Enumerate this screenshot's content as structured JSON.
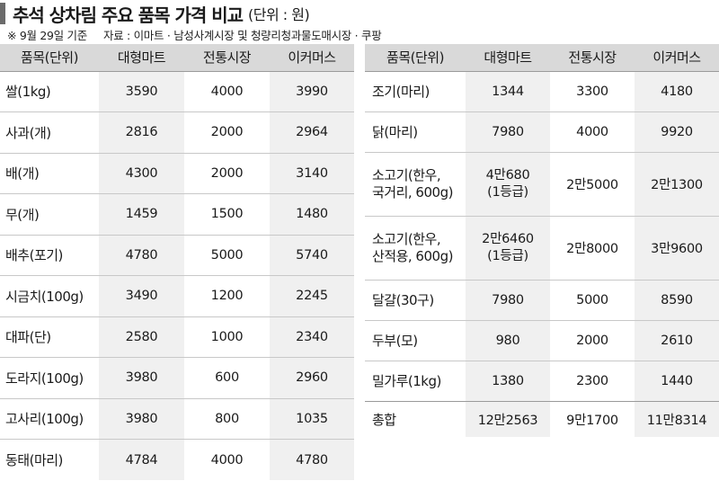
{
  "header": {
    "title": "추석 상차림 주요 품목 가격 비교",
    "unit": "(단위 : 원)",
    "date_note": "※ 9월 29일 기준",
    "source_note": "자료 : 이마트 · 남성사계시장 및 청량리청과물도매시장 · 쿠팡"
  },
  "columns": [
    "품목(단위)",
    "대형마트",
    "전통시장",
    "이커머스"
  ],
  "left_rows": [
    {
      "item": "쌀(1kg)",
      "mart": "3590",
      "market": "4000",
      "ecommerce": "3990"
    },
    {
      "item": "사과(개)",
      "mart": "2816",
      "market": "2000",
      "ecommerce": "2964"
    },
    {
      "item": "배(개)",
      "mart": "4300",
      "market": "2000",
      "ecommerce": "3140"
    },
    {
      "item": "무(개)",
      "mart": "1459",
      "market": "1500",
      "ecommerce": "1480"
    },
    {
      "item": "배추(포기)",
      "mart": "4780",
      "market": "5000",
      "ecommerce": "5740"
    },
    {
      "item": "시금치(100g)",
      "mart": "3490",
      "market": "1200",
      "ecommerce": "2245"
    },
    {
      "item": "대파(단)",
      "mart": "2580",
      "market": "1000",
      "ecommerce": "2340"
    },
    {
      "item": "도라지(100g)",
      "mart": "3980",
      "market": "600",
      "ecommerce": "2960"
    },
    {
      "item": "고사리(100g)",
      "mart": "3980",
      "market": "800",
      "ecommerce": "1035"
    },
    {
      "item": "동태(마리)",
      "mart": "4784",
      "market": "4000",
      "ecommerce": "4780"
    }
  ],
  "right_rows": [
    {
      "item": "조기(마리)",
      "mart": "1344",
      "market": "3300",
      "ecommerce": "4180"
    },
    {
      "item": "닭(마리)",
      "mart": "7980",
      "market": "4000",
      "ecommerce": "9920"
    },
    {
      "item_line1": "소고기(한우,",
      "item_line2": "국거리, 600g)",
      "mart_line1": "4만680",
      "mart_line2": "(1등급)",
      "market": "2만5000",
      "ecommerce": "2만1300"
    },
    {
      "item_line1": "소고기(한우,",
      "item_line2": "산적용, 600g)",
      "mart_line1": "2만6460",
      "mart_line2": "(1등급)",
      "market": "2만8000",
      "ecommerce": "3만9600"
    },
    {
      "item": "달걀(30구)",
      "mart": "7980",
      "market": "5000",
      "ecommerce": "8590"
    },
    {
      "item": "두부(모)",
      "mart": "980",
      "market": "2000",
      "ecommerce": "2610"
    },
    {
      "item": "밀가루(1kg)",
      "mart": "1380",
      "market": "2300",
      "ecommerce": "1440"
    }
  ],
  "total": {
    "item": "총합",
    "mart": "12만2563",
    "market": "9만1700",
    "ecommerce": "11만8314"
  },
  "colors": {
    "header_bg": "#d9d9d9",
    "shade_bg": "#f0f0f0",
    "accent_bar": "#6b6b6b"
  }
}
